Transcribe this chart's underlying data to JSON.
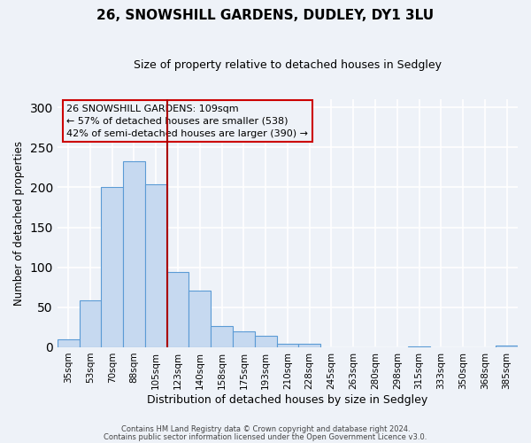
{
  "title": "26, SNOWSHILL GARDENS, DUDLEY, DY1 3LU",
  "subtitle": "Size of property relative to detached houses in Sedgley",
  "xlabel": "Distribution of detached houses by size in Sedgley",
  "ylabel": "Number of detached properties",
  "bar_labels": [
    "35sqm",
    "53sqm",
    "70sqm",
    "88sqm",
    "105sqm",
    "123sqm",
    "140sqm",
    "158sqm",
    "175sqm",
    "193sqm",
    "210sqm",
    "228sqm",
    "245sqm",
    "263sqm",
    "280sqm",
    "298sqm",
    "315sqm",
    "333sqm",
    "350sqm",
    "368sqm",
    "385sqm"
  ],
  "bar_values": [
    10,
    59,
    200,
    233,
    204,
    94,
    71,
    27,
    20,
    14,
    4,
    4,
    0,
    0,
    0,
    0,
    1,
    0,
    0,
    0,
    2
  ],
  "bar_color": "#c6d9f0",
  "bar_edge_color": "#5b9bd5",
  "vline_x_idx": 4,
  "vline_color": "#aa0000",
  "ylim": [
    0,
    310
  ],
  "annotation_title": "26 SNOWSHILL GARDENS: 109sqm",
  "annotation_line1": "← 57% of detached houses are smaller (538)",
  "annotation_line2": "42% of semi-detached houses are larger (390) →",
  "annotation_box_color": "#cc0000",
  "footnote1": "Contains HM Land Registry data © Crown copyright and database right 2024.",
  "footnote2": "Contains public sector information licensed under the Open Government Licence v3.0.",
  "background_color": "#eef2f8"
}
